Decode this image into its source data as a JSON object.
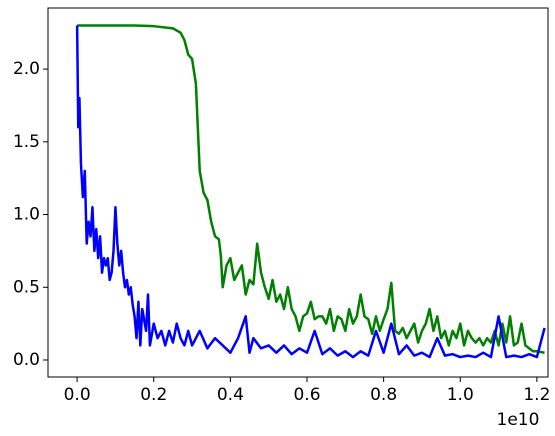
{
  "chart_data": {
    "type": "line",
    "xlim": [
      -0.076,
      1.229
    ],
    "ylim": [
      -0.117,
      2.42
    ],
    "xticks": [
      {
        "value": 0,
        "label": "0.0"
      },
      0.2,
      0.4,
      0.6,
      0.8,
      {
        "value": 1,
        "label": "1.0"
      },
      1.2
    ],
    "yticks": [
      {
        "value": 0,
        "label": "0.0"
      },
      0.5,
      {
        "value": 1,
        "label": "1.0"
      },
      1.5,
      {
        "value": 2,
        "label": "2.0"
      }
    ],
    "x_offset_label": "1e10",
    "series": [
      {
        "color": "#008000",
        "x": [
          0,
          0.05,
          0.1,
          0.15,
          0.2,
          0.25,
          0.27,
          0.28,
          0.29,
          0.3,
          0.31,
          0.315,
          0.32,
          0.33,
          0.34,
          0.35,
          0.36,
          0.37,
          0.375,
          0.38,
          0.39,
          0.4,
          0.41,
          0.42,
          0.43,
          0.44,
          0.45,
          0.46,
          0.47,
          0.48,
          0.49,
          0.5,
          0.51,
          0.52,
          0.53,
          0.54,
          0.55,
          0.56,
          0.57,
          0.58,
          0.59,
          0.6,
          0.61,
          0.62,
          0.63,
          0.64,
          0.65,
          0.66,
          0.67,
          0.68,
          0.69,
          0.7,
          0.71,
          0.72,
          0.73,
          0.74,
          0.75,
          0.76,
          0.77,
          0.78,
          0.79,
          0.8,
          0.81,
          0.82,
          0.83,
          0.84,
          0.85,
          0.86,
          0.87,
          0.88,
          0.89,
          0.9,
          0.91,
          0.92,
          0.93,
          0.94,
          0.95,
          0.96,
          0.97,
          0.98,
          0.99,
          1.0,
          1.01,
          1.02,
          1.03,
          1.04,
          1.05,
          1.06,
          1.07,
          1.08,
          1.09,
          1.1,
          1.11,
          1.12,
          1.13,
          1.14,
          1.15,
          1.16,
          1.17,
          1.18,
          1.19,
          1.2,
          1.22
        ],
        "values": [
          2.3,
          2.3,
          2.3,
          2.3,
          2.295,
          2.28,
          2.25,
          2.2,
          2.1,
          2.07,
          1.9,
          1.6,
          1.3,
          1.15,
          1.1,
          0.95,
          0.85,
          0.83,
          0.72,
          0.5,
          0.65,
          0.7,
          0.55,
          0.6,
          0.65,
          0.45,
          0.55,
          0.52,
          0.8,
          0.6,
          0.5,
          0.42,
          0.55,
          0.4,
          0.45,
          0.35,
          0.5,
          0.35,
          0.3,
          0.2,
          0.3,
          0.32,
          0.4,
          0.28,
          0.3,
          0.3,
          0.25,
          0.35,
          0.2,
          0.3,
          0.28,
          0.2,
          0.35,
          0.25,
          0.3,
          0.45,
          0.3,
          0.28,
          0.18,
          0.3,
          0.2,
          0.28,
          0.35,
          0.53,
          0.2,
          0.18,
          0.22,
          0.15,
          0.2,
          0.25,
          0.12,
          0.2,
          0.25,
          0.35,
          0.2,
          0.3,
          0.15,
          0.2,
          0.1,
          0.2,
          0.15,
          0.25,
          0.1,
          0.2,
          0.15,
          0.12,
          0.15,
          0.1,
          0.15,
          0.12,
          0.2,
          0.1,
          0.25,
          0.12,
          0.3,
          0.1,
          0.12,
          0.25,
          0.1,
          0.08,
          0.06,
          0.06,
          0.05
        ]
      },
      {
        "color": "#0000ff",
        "x": [
          0,
          0.003,
          0.006,
          0.01,
          0.015,
          0.02,
          0.025,
          0.03,
          0.035,
          0.04,
          0.045,
          0.05,
          0.055,
          0.06,
          0.065,
          0.07,
          0.075,
          0.08,
          0.085,
          0.09,
          0.095,
          0.1,
          0.105,
          0.11,
          0.115,
          0.12,
          0.125,
          0.13,
          0.135,
          0.14,
          0.145,
          0.15,
          0.155,
          0.16,
          0.165,
          0.17,
          0.18,
          0.185,
          0.19,
          0.2,
          0.21,
          0.22,
          0.23,
          0.24,
          0.25,
          0.26,
          0.27,
          0.28,
          0.29,
          0.3,
          0.32,
          0.34,
          0.36,
          0.38,
          0.4,
          0.42,
          0.44,
          0.45,
          0.46,
          0.48,
          0.5,
          0.52,
          0.54,
          0.56,
          0.58,
          0.6,
          0.62,
          0.64,
          0.66,
          0.68,
          0.7,
          0.72,
          0.74,
          0.76,
          0.78,
          0.8,
          0.82,
          0.84,
          0.86,
          0.88,
          0.9,
          0.92,
          0.94,
          0.96,
          0.98,
          1.0,
          1.02,
          1.04,
          1.06,
          1.08,
          1.1,
          1.12,
          1.14,
          1.16,
          1.18,
          1.2,
          1.22
        ],
        "values": [
          2.3,
          1.6,
          1.8,
          1.35,
          1.12,
          1.3,
          0.8,
          0.95,
          0.85,
          1.05,
          0.75,
          0.9,
          0.7,
          0.85,
          0.6,
          0.7,
          0.65,
          0.7,
          0.55,
          0.6,
          0.75,
          1.05,
          0.8,
          0.65,
          0.75,
          0.6,
          0.5,
          0.55,
          0.45,
          0.5,
          0.38,
          0.3,
          0.15,
          0.4,
          0.1,
          0.35,
          0.2,
          0.45,
          0.1,
          0.25,
          0.15,
          0.2,
          0.1,
          0.2,
          0.12,
          0.25,
          0.15,
          0.1,
          0.2,
          0.1,
          0.2,
          0.08,
          0.15,
          0.1,
          0.05,
          0.15,
          0.3,
          0.05,
          0.15,
          0.08,
          0.1,
          0.05,
          0.1,
          0.04,
          0.08,
          0.05,
          0.2,
          0.04,
          0.08,
          0.03,
          0.06,
          0.02,
          0.06,
          0.03,
          0.2,
          0.05,
          0.25,
          0.04,
          0.1,
          0.03,
          0.05,
          0.02,
          0.15,
          0.03,
          0.04,
          0.02,
          0.03,
          0.02,
          0.05,
          0.02,
          0.3,
          0.02,
          0.03,
          0.02,
          0.04,
          0.02,
          0.22
        ]
      }
    ]
  }
}
